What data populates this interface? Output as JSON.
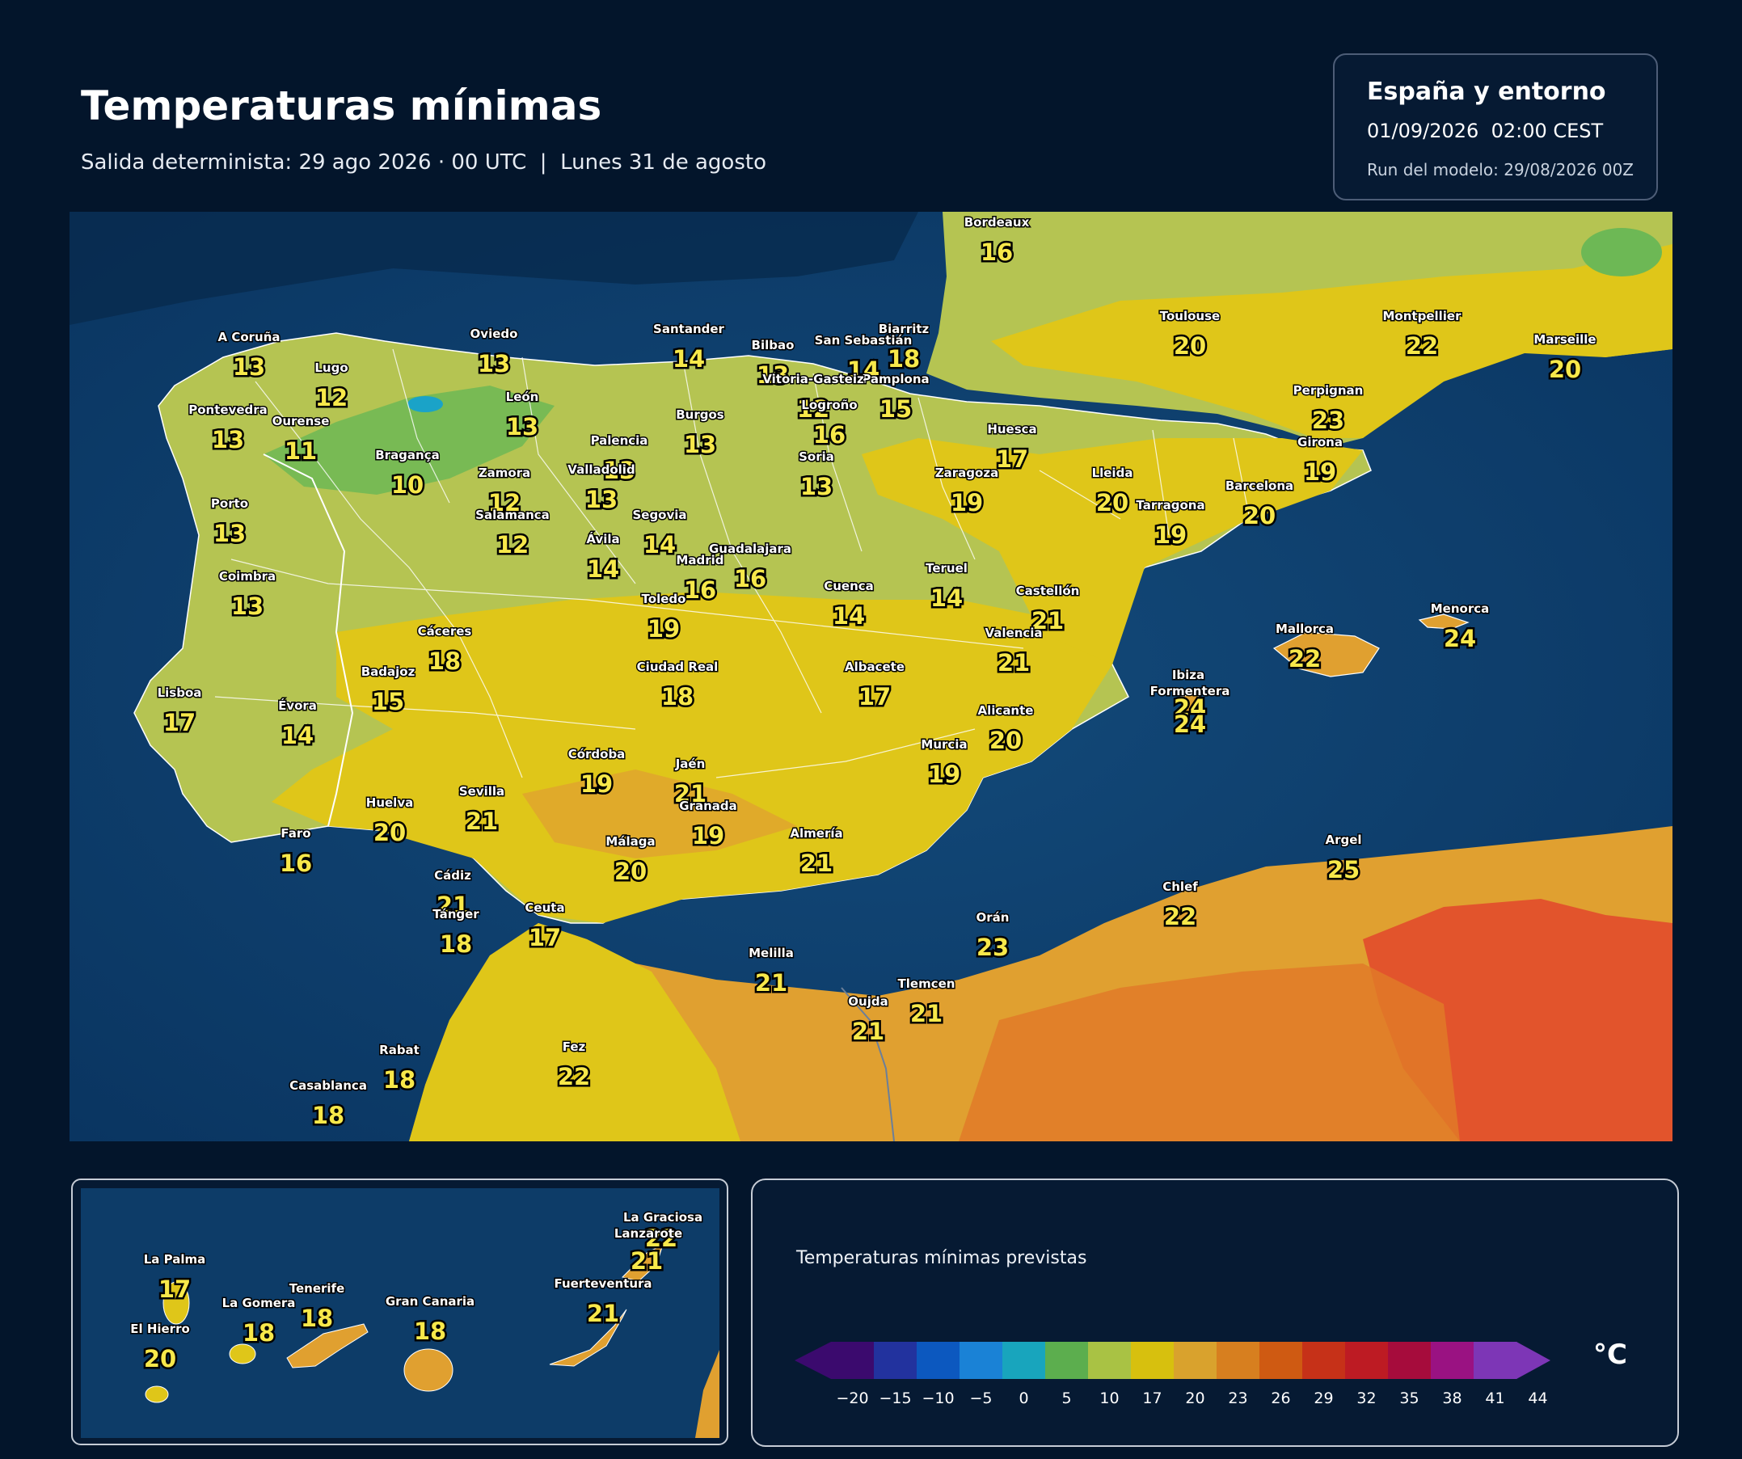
{
  "header": {
    "title": "Temperaturas mínimas",
    "subtitle": "Salida determinista: 29 ago 2026 · 00 UTC  |  Lunes 31 de agosto"
  },
  "info": {
    "region": "España y entorno",
    "valid": "01/09/2026  02:00 CEST",
    "run": "Run del modelo: 29/08/2026 00Z"
  },
  "legend": {
    "title": "Temperaturas mínimas previstas",
    "unit": "°C",
    "ticks": [
      "−20",
      "−15",
      "−10",
      "−5",
      "0",
      "5",
      "10",
      "17",
      "20",
      "23",
      "26",
      "29",
      "32",
      "35",
      "38",
      "41",
      "44"
    ],
    "colors": [
      "#3b0a6e",
      "#22329e",
      "#0c58bf",
      "#1a82d6",
      "#18a5bd",
      "#5cae4e",
      "#a9c244",
      "#d7c00e",
      "#d9a22d",
      "#d77f1f",
      "#cf5a12",
      "#c63118",
      "#bd1b23",
      "#a60c3c",
      "#9a1282",
      "#7d36b6"
    ]
  },
  "colors": {
    "sea": "#0d3c68",
    "land_green": "#b5c452",
    "land_yellow": "#dfc619",
    "land_orange": "#e0a030",
    "land_red": "#e2542c",
    "label_value": "#f7e84a"
  },
  "cities": [
    {
      "name": "Bordeaux",
      "value": "16"
    },
    {
      "name": "Toulouse",
      "value": "20"
    },
    {
      "name": "Montpellier",
      "value": "22"
    },
    {
      "name": "Marseille",
      "value": "20"
    },
    {
      "name": "Perpignan",
      "value": "23"
    },
    {
      "name": "Girona",
      "value": "19"
    },
    {
      "name": "Barcelona",
      "value": "20"
    },
    {
      "name": "Tarragona",
      "value": "19"
    },
    {
      "name": "Lleida",
      "value": "20"
    },
    {
      "name": "Huesca",
      "value": "17"
    },
    {
      "name": "Zaragoza",
      "value": "19"
    },
    {
      "name": "Biarritz",
      "value": "18"
    },
    {
      "name": "San Sebastián",
      "value": "14"
    },
    {
      "name": "Pamplona",
      "value": "15"
    },
    {
      "name": "Bilbao",
      "value": "13"
    },
    {
      "name": "Vitoria-Gasteiz",
      "value": "12"
    },
    {
      "name": "Logroño",
      "value": "16"
    },
    {
      "name": "Soria",
      "value": "13"
    },
    {
      "name": "Santander",
      "value": "14"
    },
    {
      "name": "Burgos",
      "value": "13"
    },
    {
      "name": "Palencia",
      "value": "13"
    },
    {
      "name": "Valladolid",
      "value": "13"
    },
    {
      "name": "Oviedo",
      "value": "13"
    },
    {
      "name": "León",
      "value": "13"
    },
    {
      "name": "Zamora",
      "value": "12"
    },
    {
      "name": "Salamanca",
      "value": "12"
    },
    {
      "name": "Segovia",
      "value": "14"
    },
    {
      "name": "Ávila",
      "value": "14"
    },
    {
      "name": "Madrid",
      "value": "16"
    },
    {
      "name": "Guadalajara",
      "value": "16"
    },
    {
      "name": "Cuenca",
      "value": "14"
    },
    {
      "name": "Teruel",
      "value": "14"
    },
    {
      "name": "Castellón",
      "value": "21"
    },
    {
      "name": "Valencia",
      "value": "21"
    },
    {
      "name": "Toledo",
      "value": "19"
    },
    {
      "name": "Cáceres",
      "value": "18"
    },
    {
      "name": "Badajoz",
      "value": "15"
    },
    {
      "name": "Ciudad Real",
      "value": "18"
    },
    {
      "name": "Albacete",
      "value": "17"
    },
    {
      "name": "Alicante",
      "value": "20"
    },
    {
      "name": "Murcia",
      "value": "19"
    },
    {
      "name": "A Coruña",
      "value": "13"
    },
    {
      "name": "Lugo",
      "value": "12"
    },
    {
      "name": "Pontevedra",
      "value": "13"
    },
    {
      "name": "Ourense",
      "value": "11"
    },
    {
      "name": "Bragança",
      "value": "10"
    },
    {
      "name": "Porto",
      "value": "13"
    },
    {
      "name": "Coimbra",
      "value": "13"
    },
    {
      "name": "Lisboa",
      "value": "17"
    },
    {
      "name": "Évora",
      "value": "14"
    },
    {
      "name": "Faro",
      "value": "16"
    },
    {
      "name": "Huelva",
      "value": "20"
    },
    {
      "name": "Sevilla",
      "value": "21"
    },
    {
      "name": "Córdoba",
      "value": "19"
    },
    {
      "name": "Jaén",
      "value": "21"
    },
    {
      "name": "Granada",
      "value": "19"
    },
    {
      "name": "Málaga",
      "value": "20"
    },
    {
      "name": "Almería",
      "value": "21"
    },
    {
      "name": "Cádiz",
      "value": "21"
    },
    {
      "name": "Tánger",
      "value": "18"
    },
    {
      "name": "Ceuta",
      "value": "17"
    },
    {
      "name": "Melilla",
      "value": "21"
    },
    {
      "name": "Oujda",
      "value": "21"
    },
    {
      "name": "Tlemcen",
      "value": "21"
    },
    {
      "name": "Orán",
      "value": "23"
    },
    {
      "name": "Chlef",
      "value": "22"
    },
    {
      "name": "Argel",
      "value": "25"
    },
    {
      "name": "Rabat",
      "value": "18"
    },
    {
      "name": "Casablanca",
      "value": "18"
    },
    {
      "name": "Fez",
      "value": "22"
    },
    {
      "name": "Mallorca",
      "value": "22"
    },
    {
      "name": "Menorca",
      "value": "24"
    },
    {
      "name": "Ibiza",
      "value": "24"
    },
    {
      "name": "Formentera",
      "value": "24"
    }
  ],
  "canarias": [
    {
      "name": "La Graciosa",
      "value": "22"
    },
    {
      "name": "Lanzarote",
      "value": "21"
    },
    {
      "name": "Fuerteventura",
      "value": "21"
    },
    {
      "name": "La Palma",
      "value": "17"
    },
    {
      "name": "Tenerife",
      "value": "18"
    },
    {
      "name": "La Gomera",
      "value": "18"
    },
    {
      "name": "Gran Canaria",
      "value": "18"
    },
    {
      "name": "El Hierro",
      "value": "20"
    }
  ]
}
